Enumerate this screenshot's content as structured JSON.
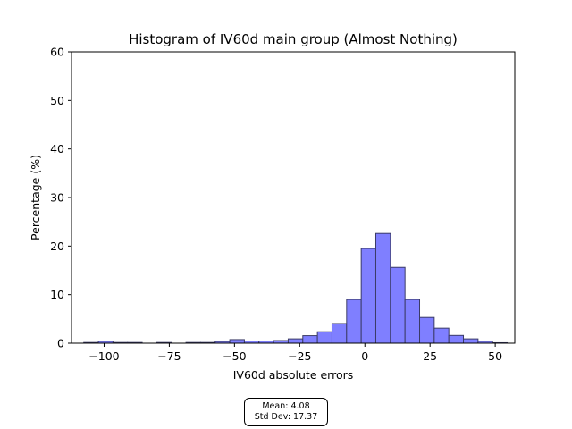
{
  "chart_data": {
    "type": "bar",
    "title": "Histogram of IV60d main group (Almost Nothing)",
    "xlabel": "IV60d absolute errors",
    "ylabel": "Percentage (%)",
    "xlim": [
      -112.5,
      57.5
    ],
    "ylim": [
      0,
      60
    ],
    "xticks": [
      -100,
      -75,
      -50,
      -25,
      0,
      25,
      50
    ],
    "xtick_labels": [
      "−100",
      "−75",
      "−50",
      "−25",
      "0",
      "25",
      "50"
    ],
    "yticks": [
      0,
      10,
      20,
      30,
      40,
      50,
      60
    ],
    "ytick_labels": [
      "0",
      "10",
      "20",
      "30",
      "40",
      "50",
      "60"
    ],
    "bin_width": 5.6,
    "bin_starts": [
      -107.8,
      -102.2,
      -96.6,
      -91.0,
      -85.4,
      -79.8,
      -74.2,
      -68.6,
      -63.0,
      -57.4,
      -51.8,
      -46.2,
      -40.6,
      -35.0,
      -29.4,
      -23.8,
      -18.2,
      -12.6,
      -7.0,
      -1.4,
      4.2,
      9.8,
      15.4,
      21.0,
      26.6,
      32.2,
      37.8,
      43.4,
      49.0
    ],
    "values": [
      0.15,
      0.4,
      0.15,
      0.15,
      0.0,
      0.15,
      0.0,
      0.15,
      0.15,
      0.35,
      0.75,
      0.45,
      0.45,
      0.55,
      0.9,
      1.55,
      2.35,
      4.05,
      9.0,
      19.5,
      22.6,
      15.6,
      9.0,
      5.3,
      3.1,
      1.6,
      0.9,
      0.4,
      0.1
    ],
    "bar_color": "#7f7fff",
    "edge_color": "#3b3b66",
    "grid": false,
    "legend": false
  },
  "stats": {
    "mean_label": "Mean: 4.08",
    "std_label": "Std Dev: 17.37"
  }
}
